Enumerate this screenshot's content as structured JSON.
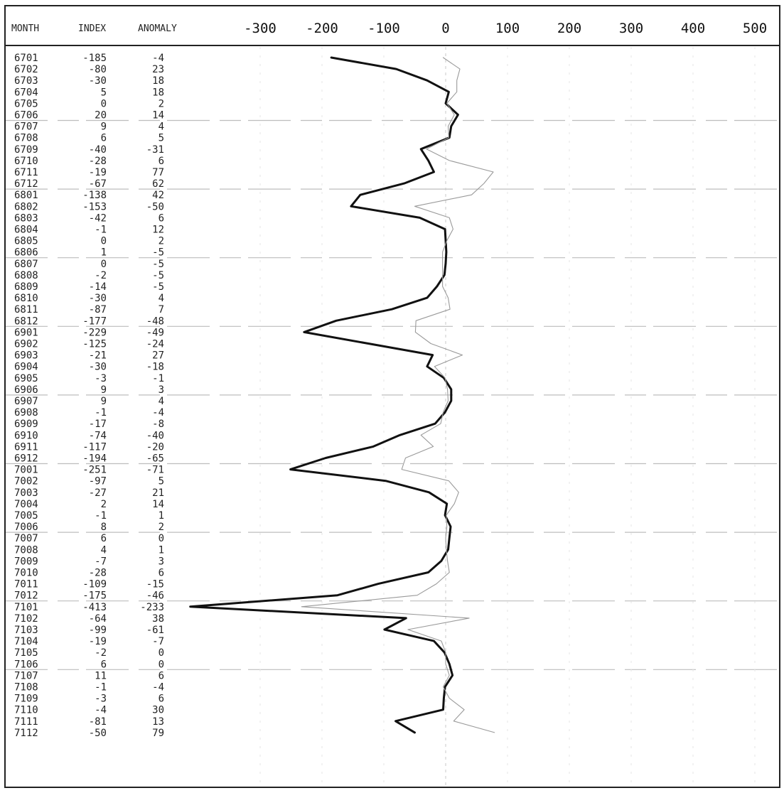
{
  "chart_data": {
    "type": "line",
    "columns": [
      "MONTH",
      "INDEX",
      "ANOMALY"
    ],
    "x_ticks": [
      -300,
      -200,
      -100,
      0,
      100,
      200,
      300,
      400,
      500
    ],
    "xlim": [
      -390,
      520
    ],
    "grid": true,
    "series": [
      {
        "key": "index",
        "color": "#111111",
        "stroke": "heavy"
      },
      {
        "key": "anomaly",
        "color": "#9a9a9a",
        "stroke": "light"
      }
    ],
    "rows": [
      {
        "month": "6701",
        "index": -185,
        "anomaly": -4
      },
      {
        "month": "6702",
        "index": -80,
        "anomaly": 23
      },
      {
        "month": "6703",
        "index": -30,
        "anomaly": 18
      },
      {
        "month": "6704",
        "index": 5,
        "anomaly": 18
      },
      {
        "month": "6705",
        "index": 0,
        "anomaly": 2
      },
      {
        "month": "6706",
        "index": 20,
        "anomaly": 14
      },
      {
        "month": "6707",
        "index": 9,
        "anomaly": 4
      },
      {
        "month": "6708",
        "index": 6,
        "anomaly": 5
      },
      {
        "month": "6709",
        "index": -40,
        "anomaly": -31
      },
      {
        "month": "6710",
        "index": -28,
        "anomaly": 6
      },
      {
        "month": "6711",
        "index": -19,
        "anomaly": 77
      },
      {
        "month": "6712",
        "index": -67,
        "anomaly": 62
      },
      {
        "month": "6801",
        "index": -138,
        "anomaly": 42
      },
      {
        "month": "6802",
        "index": -153,
        "anomaly": -50
      },
      {
        "month": "6803",
        "index": -42,
        "anomaly": 6
      },
      {
        "month": "6804",
        "index": -1,
        "anomaly": 12
      },
      {
        "month": "6805",
        "index": 0,
        "anomaly": 2
      },
      {
        "month": "6806",
        "index": 1,
        "anomaly": -5
      },
      {
        "month": "6807",
        "index": 0,
        "anomaly": -5
      },
      {
        "month": "6808",
        "index": -2,
        "anomaly": -5
      },
      {
        "month": "6809",
        "index": -14,
        "anomaly": -5
      },
      {
        "month": "6810",
        "index": -30,
        "anomaly": 4
      },
      {
        "month": "6811",
        "index": -87,
        "anomaly": 7
      },
      {
        "month": "6812",
        "index": -177,
        "anomaly": -48
      },
      {
        "month": "6901",
        "index": -229,
        "anomaly": -49
      },
      {
        "month": "6902",
        "index": -125,
        "anomaly": -24
      },
      {
        "month": "6903",
        "index": -21,
        "anomaly": 27
      },
      {
        "month": "6904",
        "index": -30,
        "anomaly": -18
      },
      {
        "month": "6905",
        "index": -3,
        "anomaly": -1
      },
      {
        "month": "6906",
        "index": 9,
        "anomaly": 3
      },
      {
        "month": "6907",
        "index": 9,
        "anomaly": 4
      },
      {
        "month": "6908",
        "index": -1,
        "anomaly": -4
      },
      {
        "month": "6909",
        "index": -17,
        "anomaly": -8
      },
      {
        "month": "6910",
        "index": -74,
        "anomaly": -40
      },
      {
        "month": "6911",
        "index": -117,
        "anomaly": -20
      },
      {
        "month": "6912",
        "index": -194,
        "anomaly": -65
      },
      {
        "month": "7001",
        "index": -251,
        "anomaly": -71
      },
      {
        "month": "7002",
        "index": -97,
        "anomaly": 5
      },
      {
        "month": "7003",
        "index": -27,
        "anomaly": 21
      },
      {
        "month": "7004",
        "index": 2,
        "anomaly": 14
      },
      {
        "month": "7005",
        "index": -1,
        "anomaly": 1
      },
      {
        "month": "7006",
        "index": 8,
        "anomaly": 2
      },
      {
        "month": "7007",
        "index": 6,
        "anomaly": 0
      },
      {
        "month": "7008",
        "index": 4,
        "anomaly": 1
      },
      {
        "month": "7009",
        "index": -7,
        "anomaly": 3
      },
      {
        "month": "7010",
        "index": -28,
        "anomaly": 6
      },
      {
        "month": "7011",
        "index": -109,
        "anomaly": -15
      },
      {
        "month": "7012",
        "index": -175,
        "anomaly": -46
      },
      {
        "month": "7101",
        "index": -413,
        "anomaly": -233
      },
      {
        "month": "7102",
        "index": -64,
        "anomaly": 38
      },
      {
        "month": "7103",
        "index": -99,
        "anomaly": -61
      },
      {
        "month": "7104",
        "index": -19,
        "anomaly": -7
      },
      {
        "month": "7105",
        "index": -2,
        "anomaly": 0
      },
      {
        "month": "7106",
        "index": 6,
        "anomaly": 0
      },
      {
        "month": "7107",
        "index": 11,
        "anomaly": 6
      },
      {
        "month": "7108",
        "index": -1,
        "anomaly": -4
      },
      {
        "month": "7109",
        "index": -3,
        "anomaly": 6
      },
      {
        "month": "7110",
        "index": -4,
        "anomaly": 30
      },
      {
        "month": "7111",
        "index": -81,
        "anomaly": 13
      },
      {
        "month": "7112",
        "index": -50,
        "anomaly": 79
      }
    ]
  }
}
